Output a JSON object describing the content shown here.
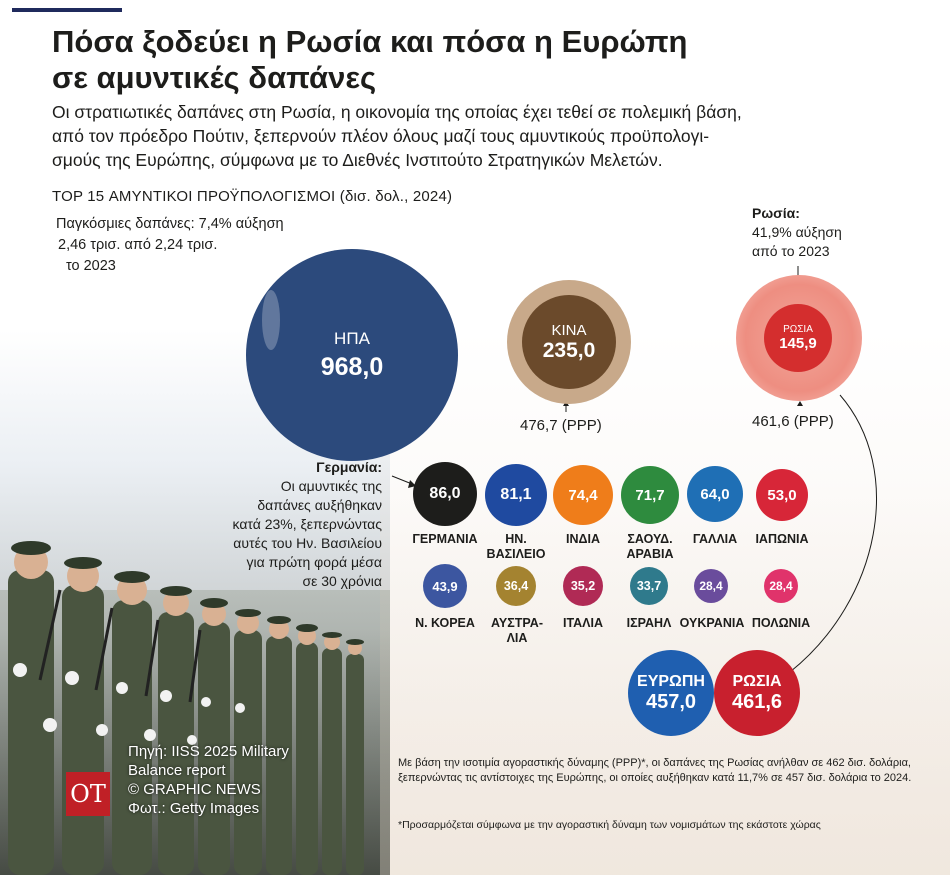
{
  "header": {
    "title_line1": "Πόσα ξοδεύει η Ρωσία και πόσα η Ευρώπη",
    "title_line2": "σε αμυντικές δαπάνες",
    "subtitle_line1": "Οι στρατιωτικές δαπάνες στη Ρωσία, η οικονομία της οποίας έχει τεθεί σε πολεμική βάση,",
    "subtitle_line2": "από τον πρόεδρο Πούτιν, ξεπερνούν πλέον όλους μαζί τους αμυντικούς προϋπολογι-",
    "subtitle_line3": "σμούς της Ευρώπης, σύμφωνα με το Διεθνές Ινστιτούτο Στρατηγικών Μελετών."
  },
  "section_title": "TOP 15 ΑΜΥΝΤΙΚΟΙ ΠΡΟΫΠΟΛΟΓΙΣΜΟΙ (δισ. δολ., 2024)",
  "global_note": {
    "line1": "Παγκόσμιες δαπάνες: 7,4% αύξηση",
    "line2": "2,46 τρισ. από 2,24 τρισ.",
    "line3": "το 2023"
  },
  "russia_note": {
    "head": "Ρωσία:",
    "line1": "41,9% αύξηση",
    "line2": "από το 2023"
  },
  "germany_note": {
    "head": "Γερμανία:",
    "line1": "Οι αμυντικές της",
    "line2": "δαπάνες αυξήθηκαν",
    "line3": "κατά 23%, ξεπερνώντας",
    "line4": "αυτές του Ην. Βασιλείου",
    "line5": "για πρώτη φορά μέσα",
    "line6": "σε 30 χρόνια"
  },
  "ppp_labels": {
    "china": "476,7 (PPP)",
    "russia": "461,6 (PPP)"
  },
  "chart_data": {
    "type": "bubble",
    "units": "δισ. δολ., 2024",
    "big": [
      {
        "name": "ΗΠΑ",
        "value": 968.0,
        "display": "968,0",
        "color": "#2c4a7c"
      },
      {
        "name": "ΚΙΝΑ",
        "value": 235.0,
        "display": "235,0",
        "color": "#6b4a2b"
      },
      {
        "name": "ΡΩΣΙΑ",
        "value": 145.9,
        "display": "145,9",
        "color": "#d42e2e"
      }
    ],
    "row1": [
      {
        "name": "ΓΕΡΜΑΝΙΑ",
        "value": 86.0,
        "display": "86,0",
        "color": "#1d1d1b"
      },
      {
        "name": "ΗΝ. ΒΑΣΙΛΕΙΟ",
        "value": 81.1,
        "display": "81,1",
        "color": "#1f4aa0"
      },
      {
        "name": "ΙΝΔΙΑ",
        "value": 74.4,
        "display": "74,4",
        "color": "#ef7d1a"
      },
      {
        "name": "ΣΑΟΥΔ. ΑΡΑΒΙΑ",
        "value": 71.7,
        "display": "71,7",
        "color": "#2e8b3e"
      },
      {
        "name": "ΓΑΛΛΙΑ",
        "value": 64.0,
        "display": "64,0",
        "color": "#1f6fb5"
      },
      {
        "name": "ΙΑΠΩΝΙΑ",
        "value": 53.0,
        "display": "53,0",
        "color": "#d72638"
      }
    ],
    "row2": [
      {
        "name": "Ν. ΚΟΡΕΑ",
        "value": 43.9,
        "display": "43,9",
        "color": "#3c56a0"
      },
      {
        "name": "ΑΥΣΤΡΑ- ΛΙΑ",
        "value": 36.4,
        "display": "36,4",
        "color": "#a48330"
      },
      {
        "name": "ΙΤΑΛΙΑ",
        "value": 35.2,
        "display": "35,2",
        "color": "#b02a55"
      },
      {
        "name": "ΙΣΡΑΗΛ",
        "value": 33.7,
        "display": "33,7",
        "color": "#2f7a8c"
      },
      {
        "name": "ΟΥΚΡΑΝΙΑ",
        "value": 28.4,
        "display": "28,4",
        "color": "#6a4c9c"
      },
      {
        "name": "ΠΟΛΩΝΙΑ",
        "value": 28.4,
        "display": "28,4",
        "color": "#e0336b"
      }
    ],
    "comparison": [
      {
        "name": "ΕΥΡΩΠΗ",
        "value": 457.0,
        "display": "457,0",
        "color": "#1f5fb0"
      },
      {
        "name": "ΡΩΣΙΑ",
        "value": 461.6,
        "display": "461,6",
        "color": "#c8202e"
      }
    ]
  },
  "source": {
    "line1": "Πηγή: IISS 2025 Military",
    "line2": "Balance report",
    "line3": "© GRAPHIC NEWS",
    "line4": "Φωτ.: Getty Images"
  },
  "logo_text": "ΟΤ",
  "footnote1": "Με βάση την ισοτιμία αγοραστικής δύναμης (PPP)*, οι δαπάνες της Ρωσίας ανήλθαν σε 462 δισ. δολάρια, ξεπερνώντας τις αντίστοιχες της Ευρώπης, οι οποίες αυξήθηκαν κατά 11,7% σε 457 δισ. δολάρια το 2024.",
  "footnote2": "*Προσαρμόζεται σύμφωνα με την αγοραστική δύναμη των νομισμάτων της εκάστοτε χώρας"
}
